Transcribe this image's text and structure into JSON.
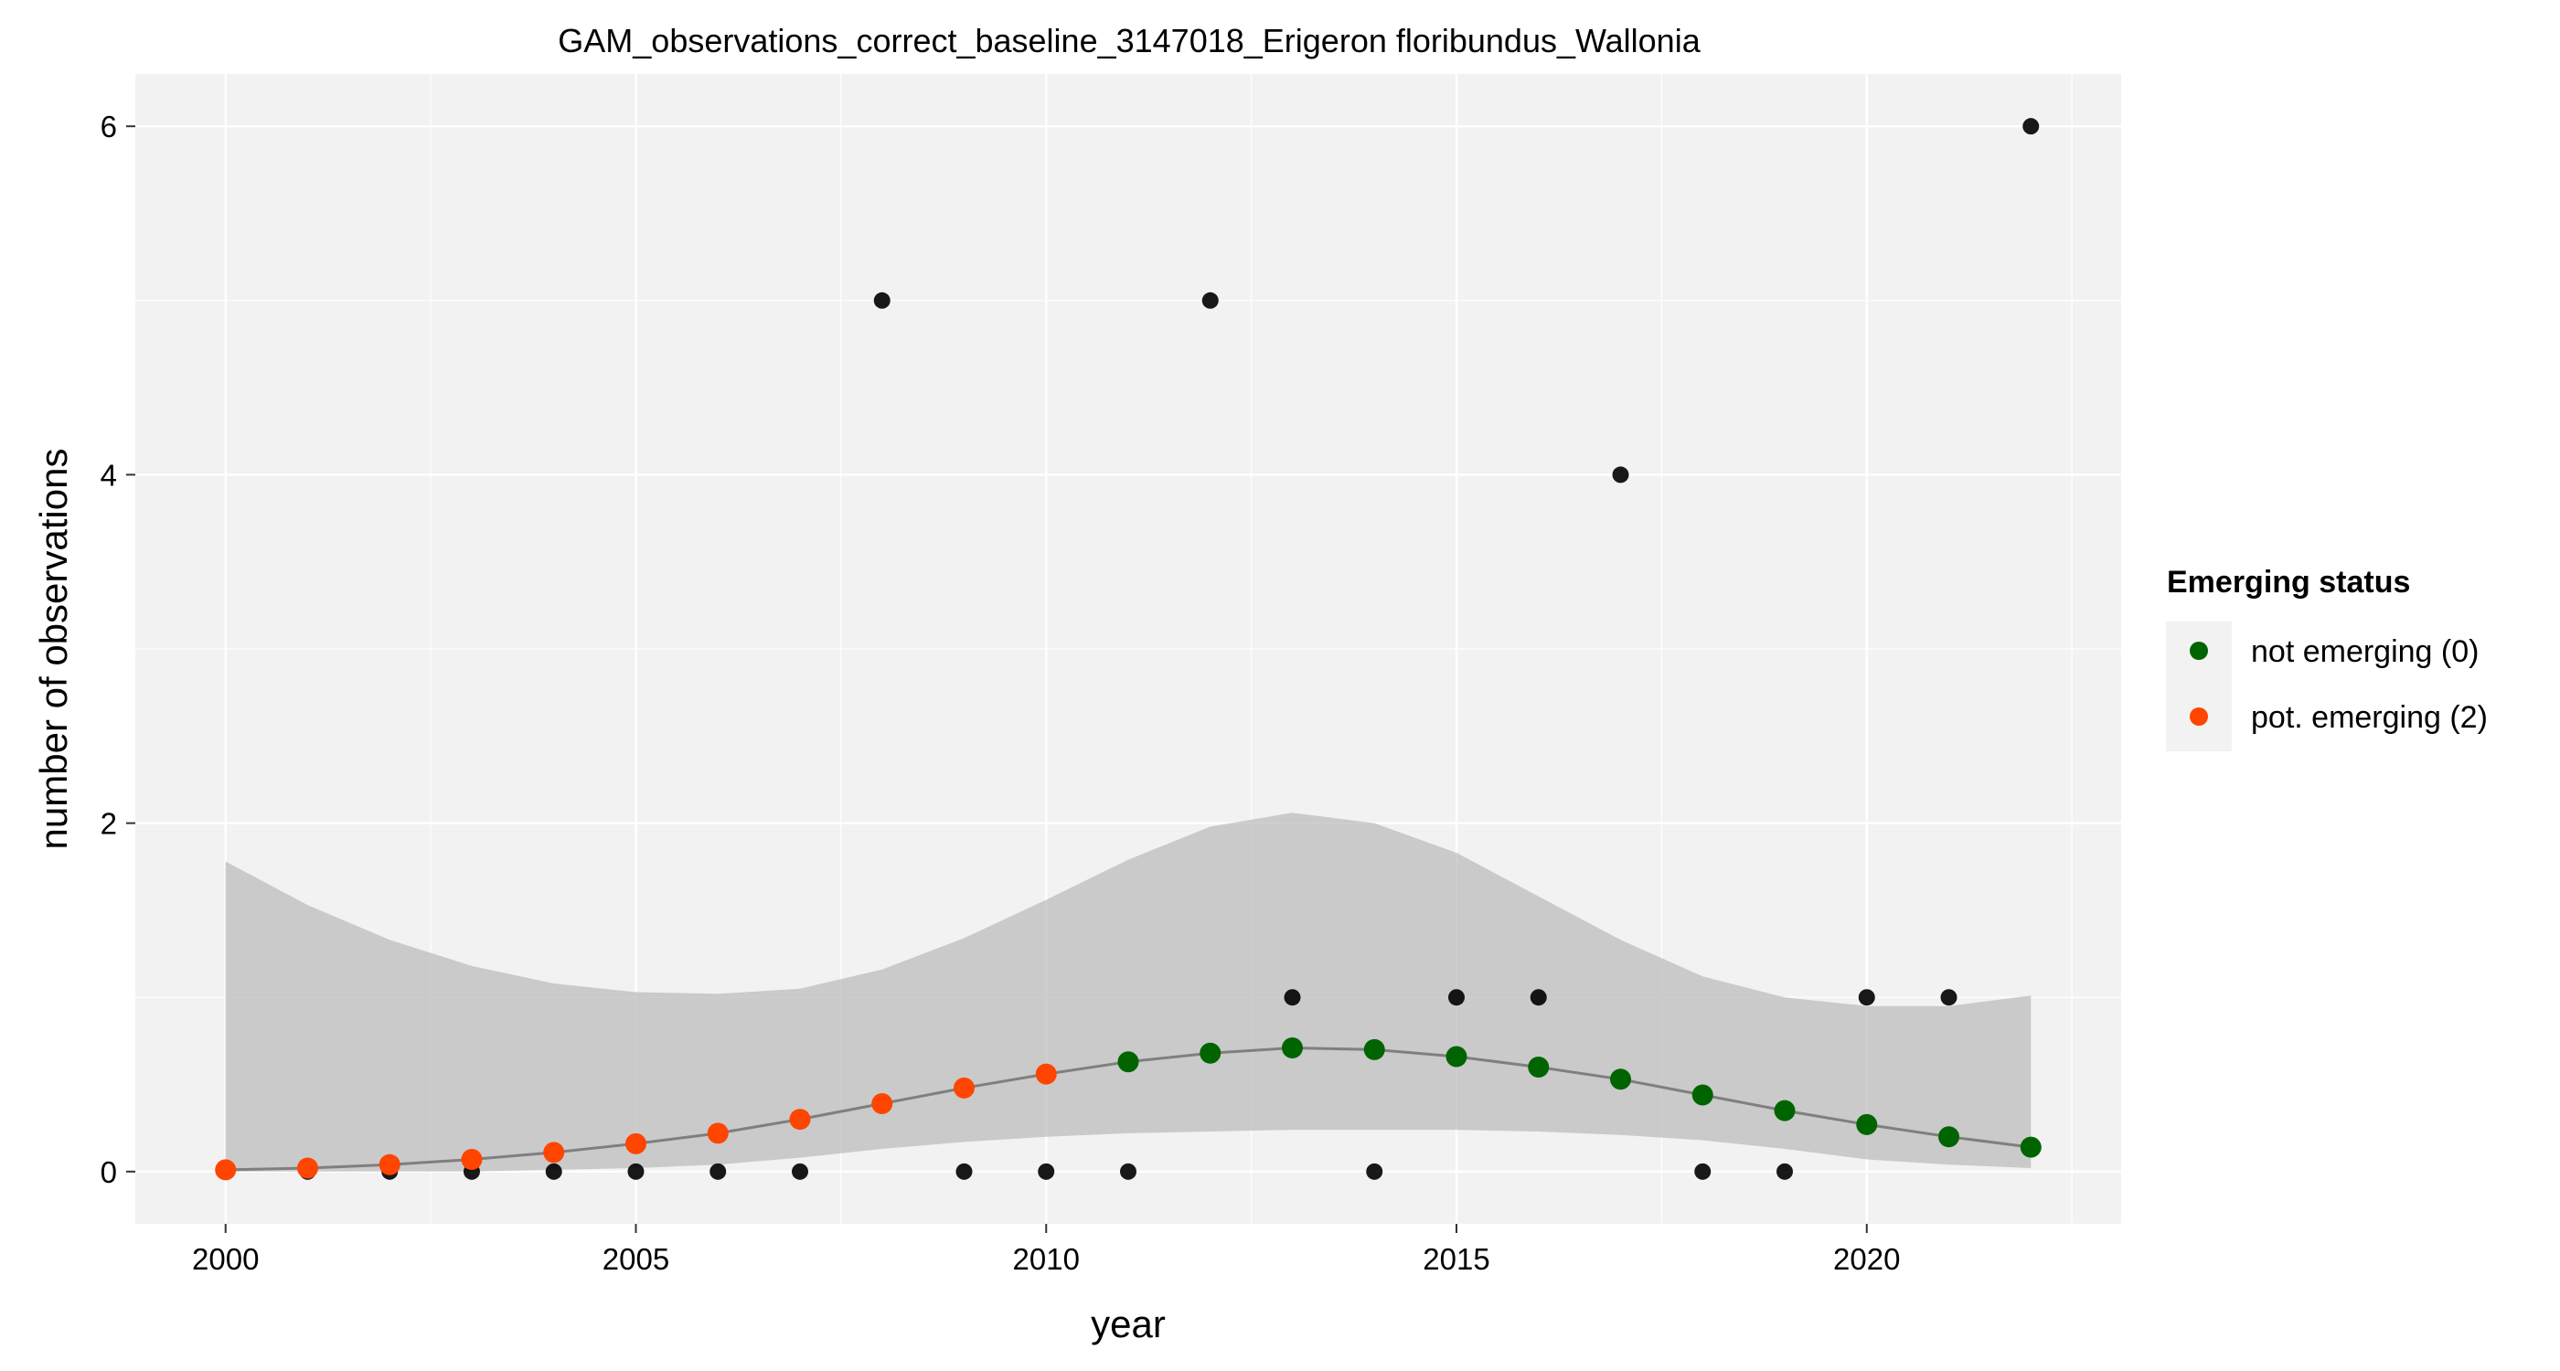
{
  "chart_data": {
    "type": "scatter",
    "title": "GAM_observations_correct_baseline_3147018_Erigeron floribundus_Wallonia",
    "xlabel": "year",
    "ylabel": "number of observations",
    "xlim": [
      1998.9,
      2023.1
    ],
    "ylim": [
      -0.3,
      6.3
    ],
    "xticks": [
      2000,
      2005,
      2010,
      2015,
      2020
    ],
    "yticks": [
      0,
      2,
      4,
      6
    ],
    "xtick_labels": [
      "2000",
      "2005",
      "2010",
      "2015",
      "2020"
    ],
    "ytick_labels": [
      "0",
      "2",
      "4",
      "6"
    ],
    "grid": true,
    "legend": {
      "title": "Emerging status",
      "placement": "right",
      "items": [
        {
          "label": "not emerging (0)",
          "color": "#006400"
        },
        {
          "label": "pot. emerging (2)",
          "color": "#FF4500"
        }
      ]
    },
    "observations": {
      "name": "observed",
      "color": "#000000",
      "x": [
        2000,
        2001,
        2002,
        2003,
        2004,
        2005,
        2006,
        2007,
        2008,
        2009,
        2010,
        2011,
        2012,
        2013,
        2014,
        2015,
        2016,
        2017,
        2018,
        2019,
        2020,
        2021,
        2022
      ],
      "y": [
        0,
        0,
        0,
        0,
        0,
        0,
        0,
        0,
        5,
        0,
        0,
        0,
        5,
        1,
        0,
        1,
        1,
        4,
        0,
        0,
        1,
        1,
        6
      ]
    },
    "fit": {
      "name": "GAM fit",
      "line_color": "#7f7f7f",
      "x": [
        2000,
        2001,
        2002,
        2003,
        2004,
        2005,
        2006,
        2007,
        2008,
        2009,
        2010,
        2011,
        2012,
        2013,
        2014,
        2015,
        2016,
        2017,
        2018,
        2019,
        2020,
        2021,
        2022
      ],
      "y": [
        0.01,
        0.02,
        0.04,
        0.07,
        0.11,
        0.16,
        0.22,
        0.3,
        0.39,
        0.48,
        0.56,
        0.63,
        0.68,
        0.71,
        0.7,
        0.66,
        0.6,
        0.53,
        0.44,
        0.35,
        0.27,
        0.2,
        0.14
      ],
      "status": [
        2,
        2,
        2,
        2,
        2,
        2,
        2,
        2,
        2,
        2,
        2,
        0,
        0,
        0,
        0,
        0,
        0,
        0,
        0,
        0,
        0,
        0,
        0
      ]
    },
    "confidence_band": {
      "color": "#b3b3b3",
      "x": [
        2000,
        2001,
        2002,
        2003,
        2004,
        2005,
        2006,
        2007,
        2008,
        2009,
        2010,
        2011,
        2012,
        2013,
        2014,
        2015,
        2016,
        2017,
        2018,
        2019,
        2020,
        2021,
        2022
      ],
      "lower": [
        0.0,
        0.0,
        0.0,
        0.0,
        0.01,
        0.02,
        0.04,
        0.08,
        0.13,
        0.17,
        0.2,
        0.22,
        0.23,
        0.24,
        0.24,
        0.24,
        0.23,
        0.21,
        0.18,
        0.13,
        0.07,
        0.04,
        0.02
      ],
      "upper": [
        1.78,
        1.53,
        1.33,
        1.18,
        1.08,
        1.03,
        1.02,
        1.05,
        1.16,
        1.34,
        1.56,
        1.79,
        1.98,
        2.06,
        2.0,
        1.83,
        1.58,
        1.33,
        1.12,
        1.0,
        0.95,
        0.95,
        1.01
      ]
    }
  }
}
